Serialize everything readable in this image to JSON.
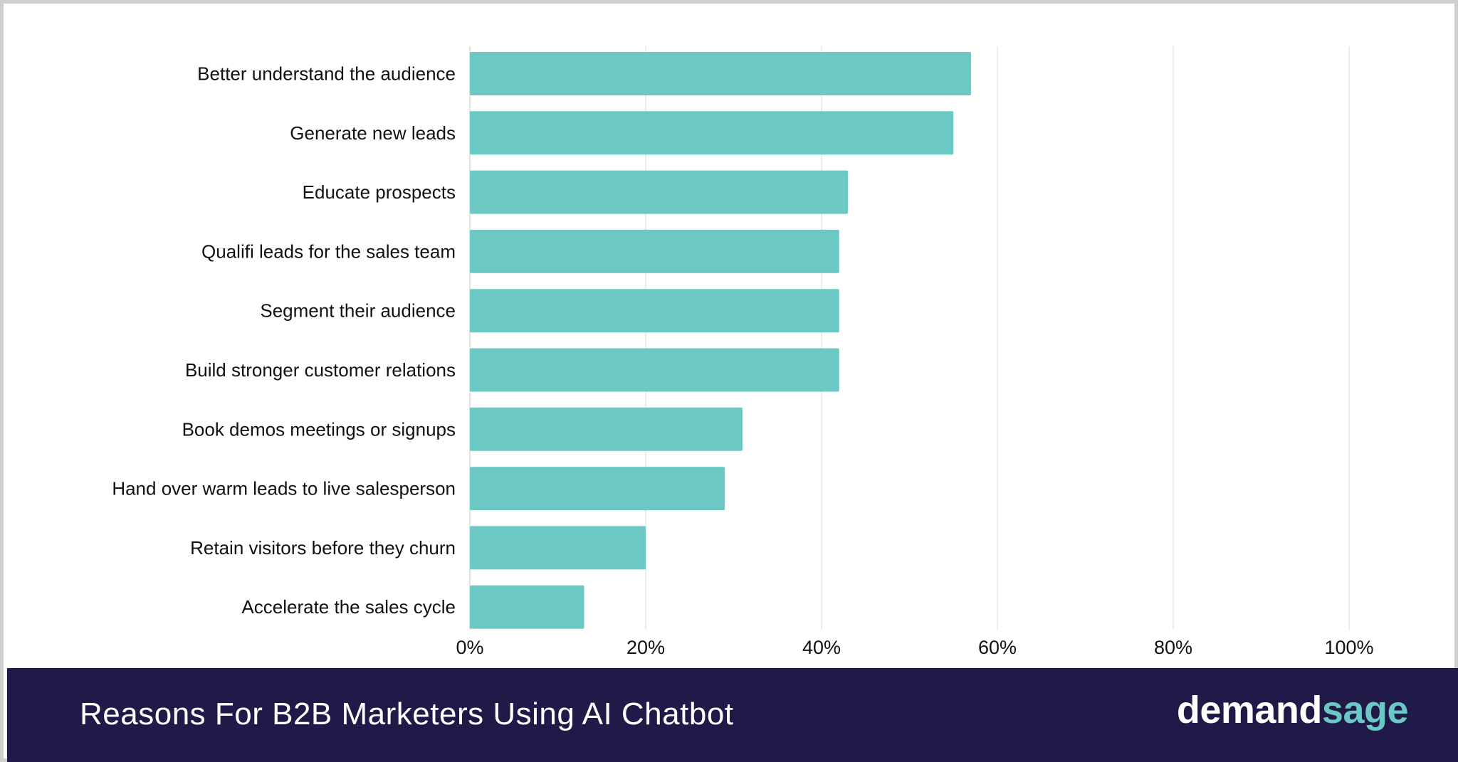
{
  "chart_data": {
    "type": "bar",
    "orientation": "horizontal",
    "categories": [
      "Better understand the audience",
      "Generate new leads",
      "Educate prospects",
      "Qualifi leads for the sales team",
      "Segment their audience",
      "Build stronger customer relations",
      "Book demos meetings or signups",
      "Hand over warm leads to live salesperson",
      "Retain visitors before they churn",
      "Accelerate the sales cycle"
    ],
    "values": [
      57,
      55,
      43,
      42,
      42,
      42,
      31,
      29,
      20,
      13
    ],
    "xlim": [
      0,
      100
    ],
    "xticks": [
      0,
      20,
      40,
      60,
      80,
      100
    ],
    "xtick_labels": [
      "0%",
      "20%",
      "40%",
      "60%",
      "80%",
      "100%"
    ],
    "grid": "vertical",
    "bar_color": "#6cc8c3"
  },
  "footer": {
    "title": "Reasons For B2B Marketers Using AI Chatbot",
    "brand_part1": "demand",
    "brand_part2": "sage",
    "background": "#1f1a48",
    "brand_accent": "#6cc8c3"
  }
}
